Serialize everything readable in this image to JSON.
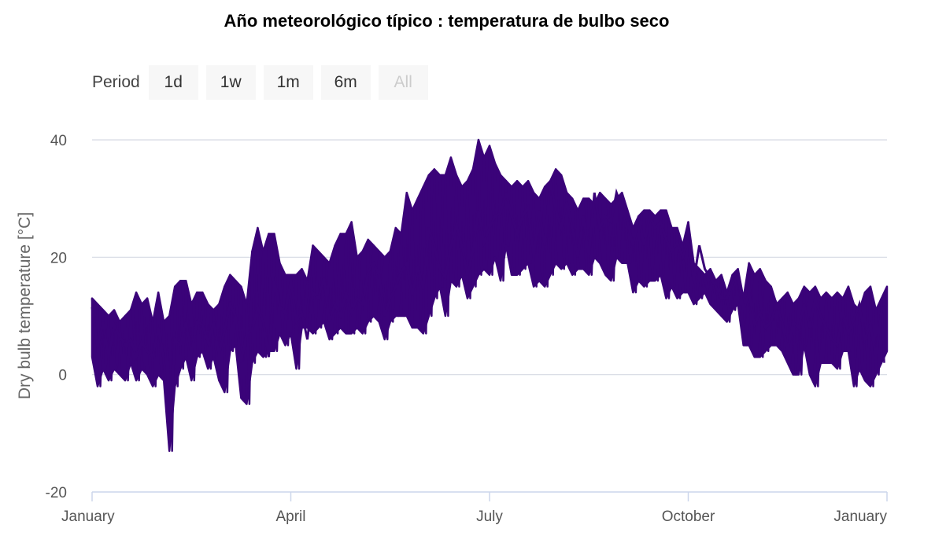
{
  "chart_data": {
    "type": "line",
    "title": "Año meteorológico típico : temperatura de bulbo seco",
    "ylabel": "Dry bulb temperature [°C]",
    "xlabel": "",
    "ylim": [
      -20,
      40
    ],
    "yticks": [
      -20,
      0,
      20,
      40
    ],
    "xticks": [
      "January",
      "April",
      "July",
      "October",
      "January"
    ],
    "grid": true,
    "colors": {
      "line": "#3a0379",
      "grid": "#d6d9e3"
    },
    "series": [
      {
        "values": [
          11.5,
          4.5,
          9.0,
          3.0,
          8.5,
          6.5,
          5.0,
          6.0,
          3.0,
          5.5,
          4.0,
          3.0,
          8.0,
          2.5,
          -12.0,
          6.0,
          5.0,
          9.0,
          3.5,
          9.0,
          8.5,
          5.5,
          9.0,
          3.5,
          7.5,
          12.0,
          10.0,
          2.0,
          7.0,
          7.5,
          11.5,
          9.0,
          3.0,
          16.0,
          11.5,
          10.5,
          16.0,
          9.0,
          10.5,
          6.0,
          14.0,
          13.0,
          16.5,
          9.0,
          12.0,
          10.0,
          14.0,
          10.5,
          13.0,
          12.0,
          17.5,
          19.0,
          17.0,
          10.0,
          13.0,
          15.0,
          17.5,
          19.0,
          13.5,
          18.5,
          14.5,
          25.0,
          22.0,
          18.0,
          16.5,
          22.0,
          25.5,
          22.0,
          17.0,
          21.0,
          28.0,
          22.5,
          25.0,
          27.0,
          27.5,
          31.0,
          27.0,
          24.0,
          27.0,
          28.5,
          20.0,
          28.0,
          22.0,
          33.0,
          28.0,
          25.0,
          29.5,
          25.0,
          20.0,
          27.0,
          20.0,
          31.0,
          25.0,
          27.0,
          26.0,
          31.0,
          28.5,
          26.0,
          22.0,
          27.0,
          22.0,
          27.0,
          25.0,
          26.0,
          23.0,
          21.0,
          22.5,
          20.0,
          23.0,
          16.0,
          22.0,
          18.0,
          16.5,
          15.0,
          13.0,
          13.0,
          15.5,
          17.0,
          11.0,
          14.0,
          8.5,
          10.5,
          8.0,
          9.0,
          12.0,
          9.0,
          4.0,
          9.0,
          8.0,
          12.0,
          8.0,
          13.0,
          10.0,
          8.0,
          6.0,
          5.0,
          11.0,
          7.0,
          9.5,
          12.0,
          6.0,
          8.5,
          3.0,
          11.0,
          12.0
        ],
        "envelope": {
          "min": [
            3.0,
            -2.0,
            1.0,
            -1.0,
            1.0,
            0.0,
            -1.0,
            2.0,
            -1.0,
            1.0,
            0.0,
            -2.0,
            0.0,
            -1.0,
            -13.0,
            -2.0,
            1.0,
            3.0,
            -1.0,
            3.0,
            4.0,
            1.0,
            3.0,
            -1.0,
            -3.0,
            4.0,
            5.0,
            -4.0,
            -5.0,
            2.0,
            4.0,
            3.0,
            4.0,
            4.0,
            7.0,
            5.0,
            7.0,
            1.0,
            8.0,
            8.0,
            7.0,
            8.0,
            9.0,
            6.0,
            7.0,
            8.0,
            7.0,
            7.0,
            8.0,
            7.0,
            9.0,
            10.0,
            9.0,
            6.0,
            9.0,
            10.0,
            10.0,
            10.0,
            8.0,
            8.0,
            7.0,
            10.0,
            13.0,
            15.0,
            10.0,
            16.0,
            15.0,
            17.0,
            13.0,
            15.0,
            17.0,
            18.0,
            17.0,
            20.0,
            16.0,
            22.0,
            17.0,
            17.0,
            18.0,
            19.0,
            15.0,
            16.0,
            15.0,
            17.0,
            19.0,
            18.0,
            19.0,
            17.0,
            18.0,
            18.0,
            17.0,
            20.0,
            19.0,
            17.0,
            16.0,
            20.0,
            19.0,
            19.0,
            14.0,
            16.0,
            15.0,
            16.0,
            16.0,
            17.0,
            13.0,
            15.0,
            13.0,
            14.0,
            14.0,
            12.0,
            13.0,
            14.0,
            12.0,
            11.0,
            10.0,
            9.0,
            11.0,
            12.0,
            5.0,
            5.0,
            3.0,
            3.0,
            4.0,
            5.0,
            5.0,
            4.0,
            2.0,
            0.0,
            0.0,
            5.0,
            0.0,
            -2.0,
            2.0,
            2.0,
            2.0,
            1.0,
            4.0,
            4.0,
            -2.0,
            1.0,
            -1.0,
            -2.0,
            0.0,
            2.0,
            4.0
          ],
          "max": [
            13.0,
            12.0,
            11.0,
            10.0,
            11.0,
            9.0,
            10.0,
            11.0,
            14.0,
            12.0,
            13.0,
            9.0,
            14.0,
            9.0,
            10.0,
            15.0,
            16.0,
            16.0,
            12.0,
            14.0,
            14.0,
            12.0,
            11.0,
            12.0,
            15.0,
            17.0,
            16.0,
            15.0,
            12.0,
            21.0,
            25.0,
            21.0,
            24.0,
            24.0,
            19.0,
            17.0,
            17.0,
            17.0,
            18.0,
            16.0,
            22.0,
            21.0,
            20.0,
            19.0,
            22.0,
            24.0,
            24.0,
            26.0,
            20.0,
            21.0,
            23.0,
            22.0,
            21.0,
            20.0,
            21.0,
            25.0,
            24.0,
            31.0,
            28.0,
            30.0,
            32.0,
            34.0,
            35.0,
            34.0,
            34.0,
            37.0,
            34.0,
            32.0,
            33.0,
            35.0,
            40.0,
            37.0,
            39.0,
            36.0,
            34.0,
            33.0,
            32.0,
            33.0,
            32.0,
            33.0,
            31.0,
            30.0,
            32.0,
            33.0,
            35.0,
            34.0,
            31.0,
            30.0,
            28.0,
            30.0,
            30.0,
            29.0,
            31.0,
            30.0,
            29.0,
            30.0,
            31.0,
            28.0,
            25.0,
            27.0,
            28.0,
            28.0,
            27.0,
            28.0,
            28.0,
            25.0,
            25.0,
            22.0,
            26.0,
            19.0,
            18.0,
            17.0,
            18.0,
            16.0,
            17.0,
            14.0,
            17.0,
            18.0,
            13.0,
            19.0,
            17.0,
            18.0,
            16.0,
            15.0,
            12.0,
            13.0,
            14.0,
            12.0,
            13.0,
            15.0,
            14.0,
            15.0,
            13.0,
            14.0,
            13.0,
            14.0,
            13.0,
            15.0,
            12.0,
            11.0,
            14.0,
            15.0,
            11.0,
            13.0,
            15.0
          ]
        }
      }
    ]
  },
  "rangeSelector": {
    "label": "Period",
    "buttons": [
      {
        "label": "1d",
        "disabled": false
      },
      {
        "label": "1w",
        "disabled": false
      },
      {
        "label": "1m",
        "disabled": false
      },
      {
        "label": "6m",
        "disabled": false
      },
      {
        "label": "All",
        "disabled": true
      }
    ]
  }
}
